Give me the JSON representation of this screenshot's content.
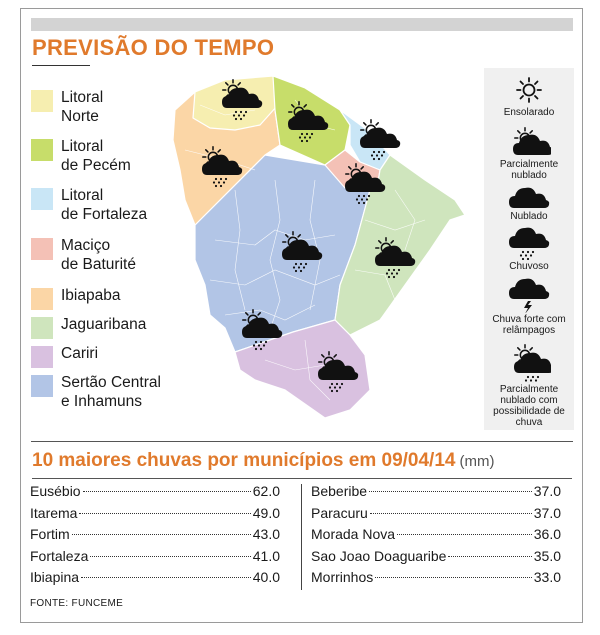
{
  "header": {
    "title": "PREVISÃO DO TEMPO"
  },
  "legend": [
    {
      "line1": "Litoral",
      "line2": "Norte",
      "color": "#f6eeb0"
    },
    {
      "line1": "Litoral",
      "line2": "de Pecém",
      "color": "#c7dd6a"
    },
    {
      "line1": "Litoral",
      "line2": "de Fortaleza",
      "color": "#c9e6f6"
    },
    {
      "line1": "Maciço",
      "line2": "de Baturité",
      "color": "#f4c1b6"
    },
    {
      "line1": "Ibiapaba",
      "line2": "",
      "color": "#fbd6a6"
    },
    {
      "line1": "Jaguaribana",
      "line2": "",
      "color": "#cfe5bd"
    },
    {
      "line1": "Cariri",
      "line2": "",
      "color": "#d9c1e0"
    },
    {
      "line1": "Sertão Central",
      "line2": "e Inhamuns",
      "color": "#b2c5e6"
    }
  ],
  "weather_key": [
    {
      "icon": "sun-icon",
      "label": "Ensolarado"
    },
    {
      "icon": "partly-cloudy-icon",
      "label": "Parcialmente nublado"
    },
    {
      "icon": "cloud-icon",
      "label": "Nublado"
    },
    {
      "icon": "rain-cloud-icon",
      "label": "Chuvoso"
    },
    {
      "icon": "thunderstorm-icon",
      "label": "Chuva forte com relâmpagos"
    },
    {
      "icon": "partly-cloudy-rain-icon",
      "label": "Parcialmente nublado com possibilidade de chuva"
    }
  ],
  "rainfall": {
    "title": "10 maiores chuvas por municípios em 09/04/14",
    "unit": "(mm)",
    "left": [
      {
        "name": "Eusébio",
        "value": "62.0"
      },
      {
        "name": "Itarema",
        "value": "49.0"
      },
      {
        "name": "Fortim",
        "value": "43.0"
      },
      {
        "name": "Fortaleza",
        "value": "41.0"
      },
      {
        "name": "Ibiapina",
        "value": "40.0"
      }
    ],
    "right": [
      {
        "name": "Beberibe",
        "value": "37.0"
      },
      {
        "name": "Paracuru",
        "value": "37.0"
      },
      {
        "name": "Morada Nova",
        "value": "36.0"
      },
      {
        "name": "Sao Joao Doaguaribe",
        "value": "35.0"
      },
      {
        "name": "Morrinhos",
        "value": "33.0"
      }
    ]
  },
  "source": "FONTE: FUNCEME"
}
